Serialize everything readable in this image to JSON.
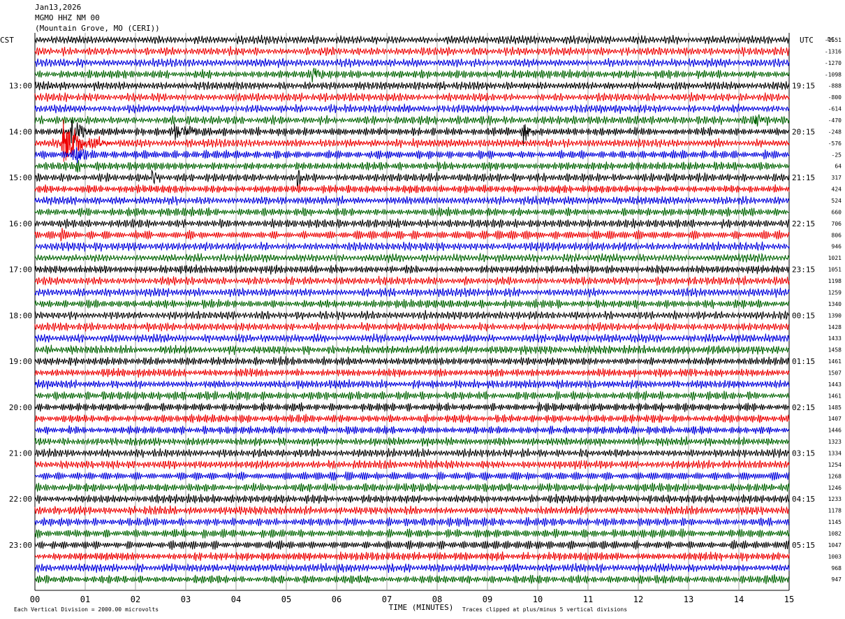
{
  "header": {
    "date": "Jan13,2026",
    "station": "MGMO HHZ NM 00",
    "location": "(Mountain Grove, MO (CERI))"
  },
  "chart_data": {
    "type": "line",
    "description_type": "helicorder",
    "left_timezone": "CST",
    "right_timezone": "UTC",
    "right_column_label": "DC",
    "xlabel": "TIME (MINUTES)",
    "xlim": [
      0,
      15
    ],
    "x_ticks": [
      "00",
      "01",
      "02",
      "03",
      "04",
      "05",
      "06",
      "07",
      "08",
      "09",
      "10",
      "11",
      "12",
      "13",
      "14",
      "15"
    ],
    "trace_minutes": 15,
    "trace_count": 48,
    "trace_colors": [
      "#000000",
      "#ee0000",
      "#0000dd",
      "#006400"
    ],
    "left_hour_labels": [
      "13:00",
      "14:00",
      "15:00",
      "16:00",
      "17:00",
      "18:00",
      "19:00",
      "20:00",
      "21:00",
      "22:00",
      "23:00"
    ],
    "right_hour_labels": [
      "19:15",
      "20:15",
      "21:15",
      "22:15",
      "23:15",
      "00:15",
      "01:15",
      "02:15",
      "03:15",
      "04:15",
      "05:15"
    ],
    "hour_label_first_trace": 4,
    "dc_offsets": [
      "-1551",
      "-1316",
      "-1270",
      "-1098",
      "-888",
      "-800",
      "-614",
      "-470",
      "-248",
      "-576",
      "-25",
      "64",
      "317",
      "424",
      "524",
      "660",
      "706",
      "806",
      "946",
      "1021",
      "1051",
      "1198",
      "1259",
      "1340",
      "1390",
      "1428",
      "1433",
      "1458",
      "1461",
      "1507",
      "1443",
      "1461",
      "1485",
      "1407",
      "1446",
      "1323",
      "1334",
      "1254",
      "1268",
      "1246",
      "1233",
      "1178",
      "1145",
      "1082",
      "1047",
      "1003",
      "968",
      "947"
    ],
    "events": [
      {
        "trace": 3,
        "minute": 5.5,
        "duration": 0.35,
        "amplitude": 2.2
      },
      {
        "trace": 8,
        "minute": 2.7,
        "duration": 1.2,
        "amplitude": 1.3
      },
      {
        "trace": 8,
        "minute": 9.7,
        "duration": 0.35,
        "amplitude": 2.3
      },
      {
        "trace": 7,
        "minute": 14.3,
        "duration": 0.4,
        "amplitude": 1.6
      },
      {
        "trace": 9,
        "minute": 0.5,
        "duration": 1.0,
        "amplitude": 4.5
      },
      {
        "trace": 8,
        "minute": 0.7,
        "duration": 0.6,
        "amplitude": 2.6
      },
      {
        "trace": 10,
        "minute": 0.75,
        "duration": 0.5,
        "amplitude": 1.8
      },
      {
        "trace": 11,
        "minute": 0.8,
        "duration": 0.3,
        "amplitude": 1.2
      },
      {
        "trace": 12,
        "minute": 2.3,
        "duration": 0.3,
        "amplitude": 2.0
      },
      {
        "trace": 12,
        "minute": 5.2,
        "duration": 0.2,
        "amplitude": 1.6
      },
      {
        "trace": 17,
        "minute": 0.5,
        "duration": 0.3,
        "amplitude": 1.0
      }
    ],
    "footer_left": "Each Vertical Division = 2000.00 microvolts",
    "footer_right": "Traces clipped at plus/minus 5 vertical divisions",
    "grid": true
  }
}
